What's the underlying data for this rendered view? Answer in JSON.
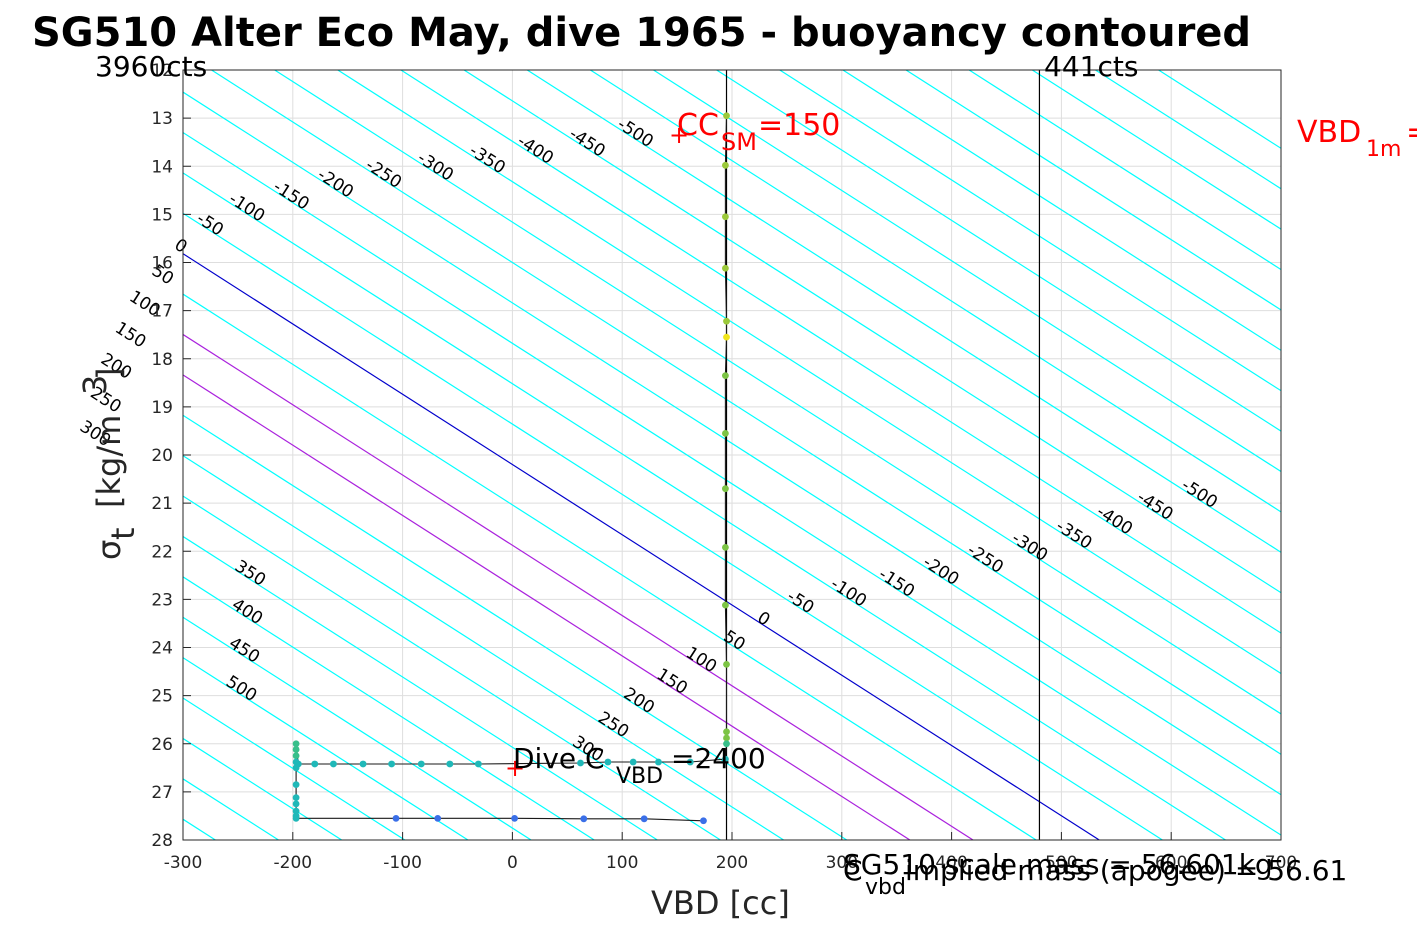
{
  "chart_data": {
    "type": "line",
    "title": "SG510 Alter Eco May, dive 1965 - buoyancy contoured",
    "xlabel": "VBD [cc]",
    "ylabel_main": "σ",
    "ylabel_sub": "t",
    "ylabel_unit": "[kg/m",
    "ylabel_exp": "3",
    "ylabel_close": "]",
    "xlim": [
      -300,
      700
    ],
    "ylim": [
      28,
      12
    ],
    "x_ticks": [
      -300,
      -200,
      -100,
      0,
      100,
      200,
      300,
      400,
      500,
      600,
      700
    ],
    "x_tick_labels": [
      "-300",
      "-200",
      "-100",
      "0",
      "100",
      "200",
      "300",
      "400",
      "500",
      "600",
      "700"
    ],
    "y_ticks": [
      12,
      13,
      14,
      15,
      16,
      17,
      18,
      19,
      20,
      21,
      22,
      23,
      24,
      25,
      26,
      27,
      28
    ],
    "y_tick_labels": [
      "12",
      "13",
      "14",
      "15",
      "16",
      "17",
      "18",
      "19",
      "20",
      "21",
      "22",
      "23",
      "24",
      "25",
      "26",
      "27",
      "28"
    ],
    "grid": true,
    "colors": {
      "contour": "#00ffff",
      "zero_contour": "#0000cc",
      "magenta_contour": "#aa22dd",
      "annot_red": "#ff0000",
      "vline": "#000000"
    },
    "contour_levels": [
      -500,
      -450,
      -400,
      -350,
      -300,
      -250,
      -200,
      -150,
      -100,
      -50,
      0,
      50,
      100,
      150,
      200,
      250,
      300,
      350,
      400,
      450,
      500
    ],
    "contour_labels_lower": [
      "-500",
      "-450",
      "-400",
      "-350",
      "-300",
      "-250",
      "-200",
      "-150",
      "-100",
      "-50",
      "0",
      "50",
      "100",
      "150",
      "200",
      "250",
      "300"
    ],
    "contour_labels_upper": [
      "-500",
      "-450",
      "-400",
      "-350",
      "-300",
      "-250",
      "-200",
      "-150",
      "-100",
      "-50",
      "0",
      "50",
      "100",
      "150",
      "200",
      "250",
      "300"
    ],
    "contour_labels_lower_right": [
      "350",
      "400",
      "450",
      "500"
    ],
    "magenta_levels": [
      100,
      150
    ],
    "vlines": [
      {
        "x": 195,
        "label": ""
      },
      {
        "x": 480,
        "label": "441cts"
      }
    ],
    "left_count_label": "3960cts",
    "cc_sm": {
      "x": 147,
      "y": 13.4,
      "main": "CC",
      "sub": "SM",
      "value": "=150"
    },
    "vbd_1m": {
      "main": "VBD",
      "sub": "1m",
      "value": "="
    },
    "dive_cvbd": {
      "x": 0,
      "y": 26.45,
      "main": "Dive C",
      "sub": "VBD",
      "value": "=2400"
    },
    "footer_line1": "SG510 scale mass = 56.601kg",
    "footer_line2_main": "C",
    "footer_line2_sub": "vbd",
    "footer_line2_rest": " implied mass (apogee) = 56.61",
    "profile": {
      "descent": [
        [
          195,
          12.95
        ],
        [
          194,
          13.98
        ],
        [
          194,
          15.05
        ],
        [
          194,
          16.12
        ],
        [
          195,
          17.22
        ],
        [
          195,
          17.55
        ],
        [
          194,
          18.35
        ],
        [
          194,
          19.55
        ],
        [
          194,
          20.7
        ],
        [
          194,
          21.92
        ],
        [
          194,
          23.12
        ],
        [
          195,
          24.35
        ],
        [
          195,
          25.75
        ],
        [
          195,
          25.88
        ],
        [
          195,
          26.0
        ],
        [
          194,
          26.32
        ],
        [
          162,
          26.38
        ],
        [
          133,
          26.38
        ],
        [
          110,
          26.38
        ],
        [
          87,
          26.38
        ],
        [
          62,
          26.4
        ],
        [
          -31,
          26.42
        ],
        [
          -57,
          26.42
        ],
        [
          -83,
          26.42
        ],
        [
          -110,
          26.42
        ],
        [
          -136,
          26.42
        ],
        [
          -163,
          26.42
        ],
        [
          -180,
          26.42
        ],
        [
          -195,
          26.42
        ],
        [
          -197,
          26.0
        ],
        [
          -197,
          26.12
        ],
        [
          -197,
          26.25
        ],
        [
          -197,
          26.38
        ],
        [
          -197,
          26.5
        ],
        [
          -197,
          26.85
        ],
        [
          -197,
          27.12
        ],
        [
          -197,
          27.25
        ],
        [
          -197,
          27.4
        ],
        [
          -197,
          27.5
        ],
        [
          -197,
          27.55
        ]
      ],
      "ascent": [
        [
          -197,
          27.55
        ],
        [
          -106,
          27.55
        ],
        [
          -68,
          27.55
        ],
        [
          2,
          27.55
        ],
        [
          65,
          27.56
        ],
        [
          120,
          27.56
        ],
        [
          174,
          27.6
        ]
      ]
    }
  }
}
